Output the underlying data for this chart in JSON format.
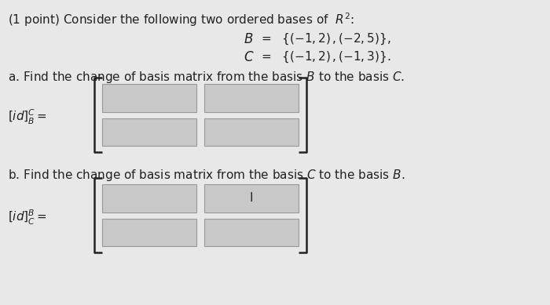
{
  "bg_color": "#e8e8e8",
  "text_color": "#222222",
  "box_fill": "#c8c8c8",
  "box_border": "#999999",
  "bracket_color": "#222222",
  "cursor_text": "I",
  "title": "(1 point) Consider the following two ordered bases of  $R^2$:",
  "B_label": "$B$",
  "C_label": "$C$",
  "B_def": "=  $\\{(-1,2)\\,,(-2,5)\\}$,",
  "C_def": "=  $\\{(-1,2)\\,,(-1,3)\\}$.",
  "part_a": "a. Find the change of basis matrix from the basis $\\mathit{B}$ to the basis $\\mathit{C}$.",
  "label_a": "$[id]^C_B=$",
  "part_b": "b. Find the change of basis matrix from the basis $\\mathit{C}$ to the basis $\\mathit{B}$.",
  "label_b": "$[id]^B_C=$",
  "fig_w": 7.0,
  "fig_h": 3.89,
  "dpi": 100
}
